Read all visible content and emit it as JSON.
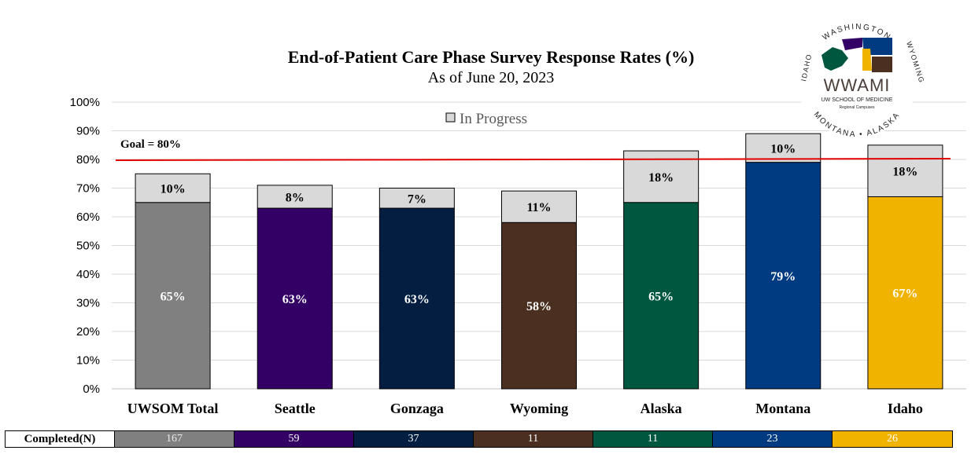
{
  "chart_data": {
    "type": "bar",
    "stacked": true,
    "title": "End-of-Patient Care Phase Survey Response Rates (%)",
    "subtitle": "As of June 20, 2023",
    "categories": [
      "UWSOM Total",
      "Seattle",
      "Gonzaga",
      "Wyoming",
      "Alaska",
      "Montana",
      "Idaho"
    ],
    "series": [
      {
        "name": "",
        "values": [
          65,
          63,
          63,
          58,
          65,
          79,
          67
        ],
        "labels": [
          "65%",
          "63%",
          "63%",
          "58%",
          "65%",
          "79%",
          "67%"
        ],
        "colors": [
          "#808080",
          "#330066",
          "#041e42",
          "#4b3021",
          "#00573f",
          "#003a80",
          "#f0b300"
        ]
      },
      {
        "name": "In Progress",
        "values": [
          10,
          8,
          7,
          11,
          18,
          10,
          18
        ],
        "labels": [
          "10%",
          "8%",
          "7%",
          "11%",
          "18%",
          "10%",
          "18%"
        ],
        "color": "#d9d9d9"
      }
    ],
    "ylim": [
      0,
      100
    ],
    "yticks": [
      "0%",
      "10%",
      "20%",
      "30%",
      "40%",
      "50%",
      "60%",
      "70%",
      "80%",
      "90%",
      "100%"
    ],
    "goal": {
      "value": 80,
      "label": "Goal = 80%",
      "color": "#e00000"
    },
    "legend": {
      "position": "top",
      "label": "In Progress"
    },
    "grid": true
  },
  "completed_table": {
    "header": "Completed(N)",
    "values": [
      "167",
      "59",
      "37",
      "11",
      "11",
      "23",
      "26"
    ]
  },
  "logo": {
    "top_text": "WASHINGTON",
    "left_text": "IDAHO",
    "right_text": "WYOMING",
    "bottom_text": "MONTANA • ALASKA",
    "name": "WWAMI",
    "line1": "UW SCHOOL OF MEDICINE",
    "line2": "Regional Campuses"
  }
}
